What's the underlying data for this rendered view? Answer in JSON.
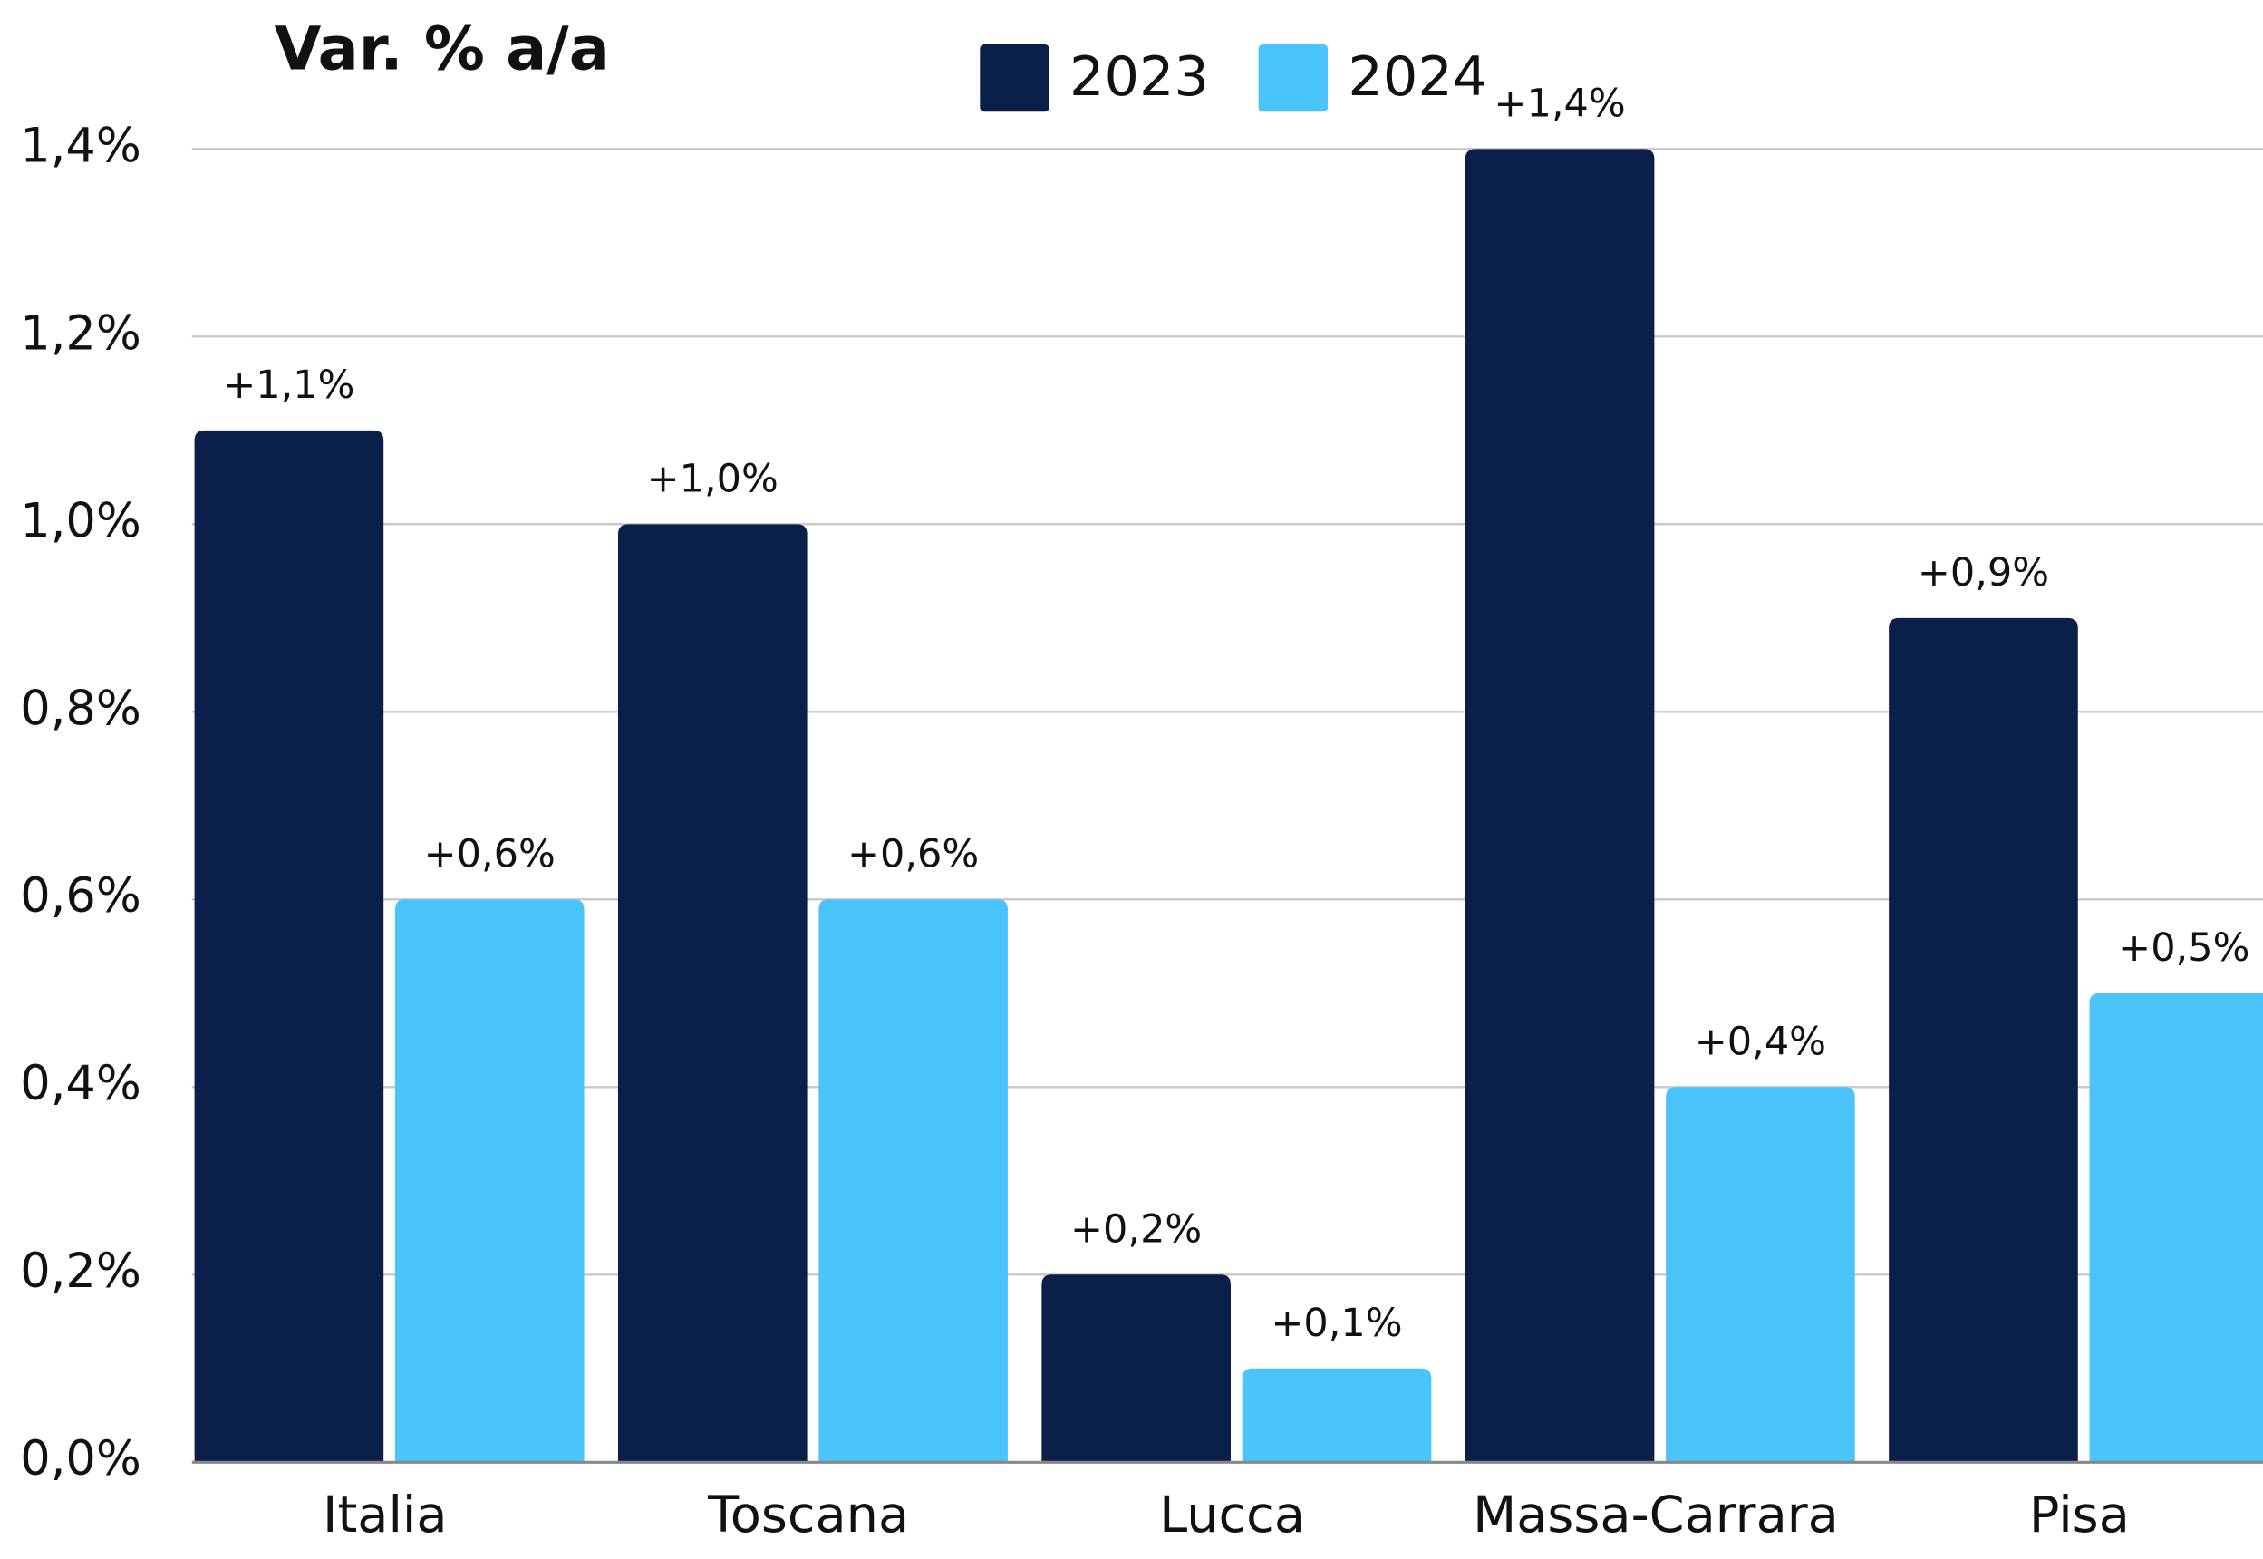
{
  "chart_data": {
    "type": "bar",
    "title": "Var. % a/a",
    "categories": [
      "Italia",
      "Toscana",
      "Lucca",
      "Massa-Carrara",
      "Pisa"
    ],
    "series": [
      {
        "name": "2023",
        "color": "#0a1f4a",
        "values": [
          1.1,
          1.0,
          0.2,
          1.4,
          0.9
        ],
        "value_labels": [
          "+1,1%",
          "+1,0%",
          "+0,2%",
          "+1,4%",
          "+0,9%"
        ]
      },
      {
        "name": "2024",
        "color": "#4bc4fc",
        "values": [
          0.6,
          0.6,
          0.1,
          0.4,
          0.5
        ],
        "value_labels": [
          "+0,6%",
          "+0,6%",
          "+0,1%",
          "+0,4%",
          "+0,5%"
        ]
      }
    ],
    "ylim": [
      0,
      1.4
    ],
    "yticks": [
      {
        "value": 0,
        "label": "0,0%"
      },
      {
        "value": 0.2,
        "label": "0,2%"
      },
      {
        "value": 0.4,
        "label": "0,4%"
      },
      {
        "value": 0.6,
        "label": "0,6%"
      },
      {
        "value": 0.8,
        "label": "0,8%"
      },
      {
        "value": 1.0,
        "label": "1,0%"
      },
      {
        "value": 1.2,
        "label": "1,2%"
      },
      {
        "value": 1.4,
        "label": "1,4%"
      }
    ],
    "grid": true,
    "legend": "top"
  }
}
